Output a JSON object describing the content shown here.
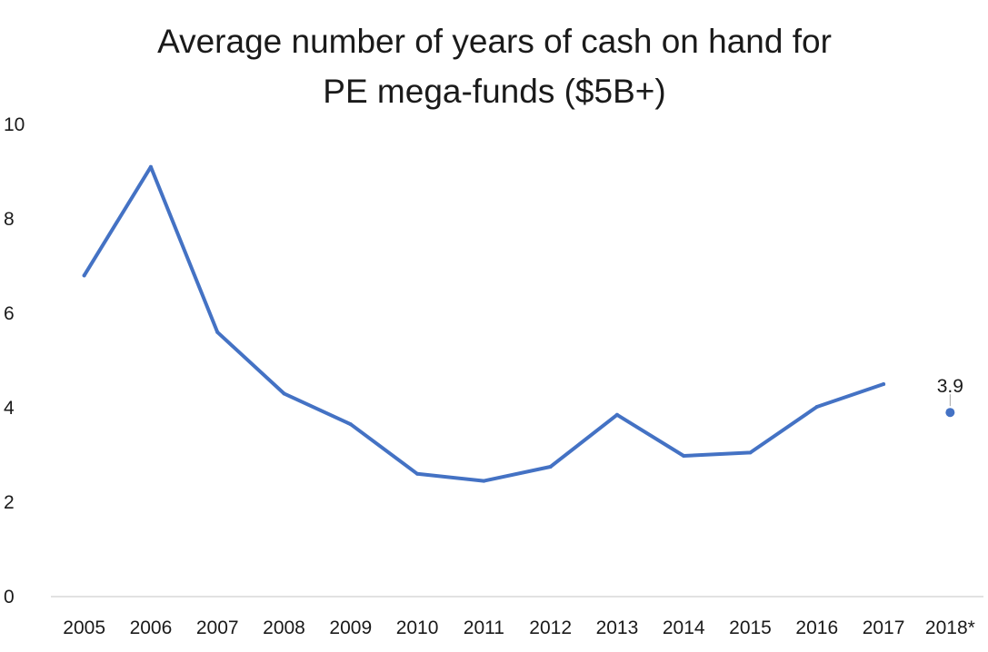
{
  "chart_data": {
    "type": "line",
    "title_lines": [
      "Average number of years of cash on hand for",
      "PE mega-funds ($5B+)"
    ],
    "categories": [
      "2005",
      "2006",
      "2007",
      "2008",
      "2009",
      "2010",
      "2011",
      "2012",
      "2013",
      "2014",
      "2015",
      "2016",
      "2017",
      "2018*"
    ],
    "series": [
      {
        "values": [
          6.8,
          9.1,
          5.6,
          4.3,
          3.65,
          2.6,
          2.45,
          2.75,
          3.85,
          2.98,
          3.05,
          4.02,
          4.5,
          null
        ]
      },
      {
        "values": [
          null,
          null,
          null,
          null,
          null,
          null,
          null,
          null,
          null,
          null,
          null,
          null,
          null,
          3.9
        ]
      }
    ],
    "data_labels": [
      {
        "category": "2018*",
        "value": 3.9,
        "text": "3.9"
      }
    ],
    "y_ticks": [
      "0",
      "2",
      "4",
      "6",
      "8",
      "10"
    ],
    "ylim": [
      0,
      10
    ],
    "xlabel": "",
    "ylabel": "",
    "grid": false,
    "legend": "none",
    "colors": {
      "line": "#4472c4",
      "marker": "#4472c4",
      "axis": "#d9d9d9",
      "leader": "#a6a6a6"
    }
  }
}
